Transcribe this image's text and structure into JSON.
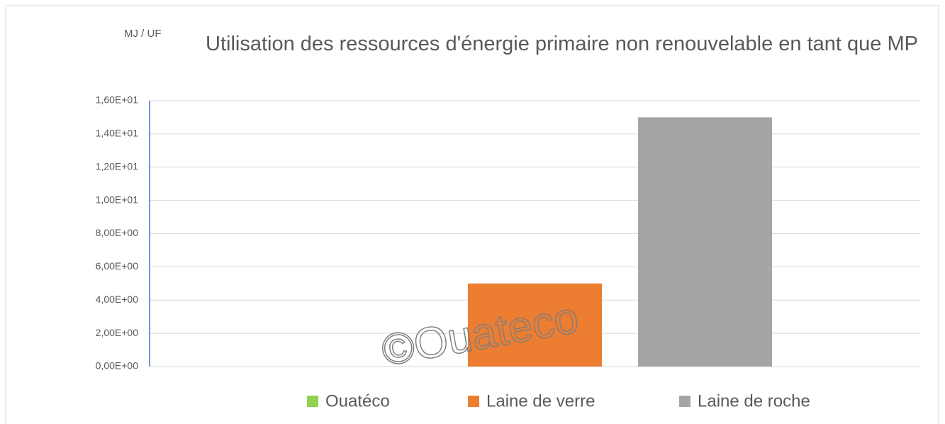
{
  "chart_data": {
    "type": "bar",
    "title": "Utilisation des ressources d'énergie primaire non renouvelable en tant que MP",
    "y_label": "MJ / UF",
    "annotation": "©Ouateco",
    "categories": [
      null
    ],
    "series": [
      {
        "name": "Ouatéco",
        "color": "#92d050",
        "values": [
          0
        ]
      },
      {
        "name": "Laine de verre",
        "color": "#ed7d31",
        "values": [
          5
        ]
      },
      {
        "name": "Laine de roche",
        "color": "#a5a5a5",
        "values": [
          15
        ]
      }
    ],
    "ylim": [
      0,
      16
    ],
    "yticks": [
      {
        "value": 0,
        "label": "0,00E+00"
      },
      {
        "value": 2,
        "label": "2,00E+00"
      },
      {
        "value": 4,
        "label": "4,00E+00"
      },
      {
        "value": 6,
        "label": "6,00E+00"
      },
      {
        "value": 8,
        "label": "8,00E+00"
      },
      {
        "value": 10,
        "label": "1,00E+01"
      },
      {
        "value": 12,
        "label": "1,20E+01"
      },
      {
        "value": 14,
        "label": "1,40E+01"
      },
      {
        "value": 16,
        "label": "1,60E+01"
      }
    ],
    "grid": true,
    "legend": "bottom"
  }
}
